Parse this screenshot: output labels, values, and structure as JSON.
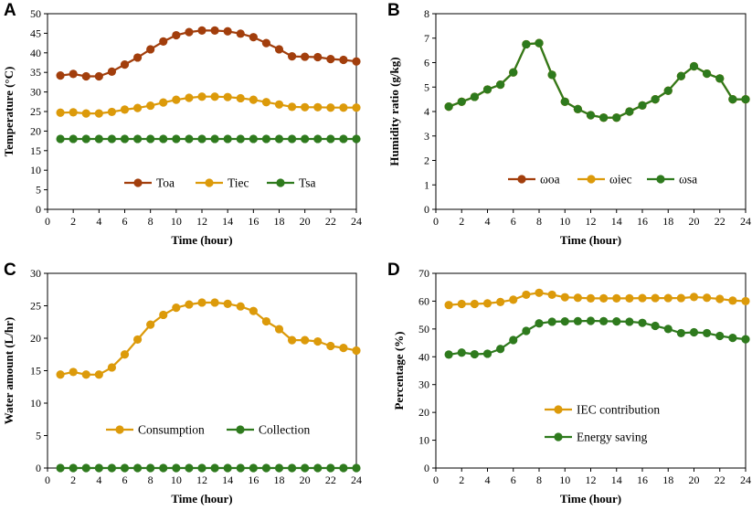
{
  "colors": {
    "red": "#a23e0c",
    "orange": "#dc9a0a",
    "green": "#2e7a1d"
  },
  "chart_data": [
    {
      "panel": "A",
      "type": "line",
      "xlabel": "Time (hour)",
      "ylabel": "Temperature (°C)",
      "xlim": [
        0,
        24
      ],
      "ylim": [
        0,
        50
      ],
      "xticks": [
        0,
        2,
        4,
        6,
        8,
        10,
        12,
        14,
        16,
        18,
        20,
        22,
        24
      ],
      "yticks": [
        0,
        5,
        10,
        15,
        20,
        25,
        30,
        35,
        40,
        45,
        50
      ],
      "x": [
        1,
        2,
        3,
        4,
        5,
        6,
        7,
        8,
        9,
        10,
        11,
        12,
        13,
        14,
        15,
        16,
        17,
        18,
        19,
        20,
        21,
        22,
        23,
        24
      ],
      "legend_position": "bottom-center",
      "legend_layout": "row",
      "series": [
        {
          "name": "Toa",
          "color": "#a23e0c",
          "values": [
            34.2,
            34.6,
            34.0,
            34.0,
            35.2,
            37.0,
            38.8,
            40.9,
            42.9,
            44.5,
            45.3,
            45.7,
            45.7,
            45.5,
            44.9,
            44.0,
            42.5,
            40.9,
            39.1,
            39.0,
            38.9,
            38.4,
            38.2,
            37.8
          ]
        },
        {
          "name": "Tiec",
          "color": "#dc9a0a",
          "values": [
            24.7,
            24.8,
            24.5,
            24.5,
            24.9,
            25.5,
            25.9,
            26.5,
            27.3,
            28.0,
            28.5,
            28.8,
            28.8,
            28.7,
            28.4,
            28.0,
            27.4,
            26.8,
            26.2,
            26.1,
            26.1,
            26.0,
            26.0,
            26.0
          ]
        },
        {
          "name": "Tsa",
          "color": "#2e7a1d",
          "values": [
            18,
            18,
            18,
            18,
            18,
            18,
            18,
            18,
            18,
            18,
            18,
            18,
            18,
            18,
            18,
            18,
            18,
            18,
            18,
            18,
            18,
            18,
            18,
            18
          ]
        }
      ]
    },
    {
      "panel": "B",
      "type": "line",
      "xlabel": "Time (hour)",
      "ylabel": "Humidity ratio (g/kg)",
      "xlim": [
        0,
        24
      ],
      "ylim": [
        0,
        8
      ],
      "xticks": [
        0,
        2,
        4,
        6,
        8,
        10,
        12,
        14,
        16,
        18,
        20,
        22,
        24
      ],
      "yticks": [
        0,
        1,
        2,
        3,
        4,
        5,
        6,
        7,
        8
      ],
      "x": [
        1,
        2,
        3,
        4,
        5,
        6,
        7,
        8,
        9,
        10,
        11,
        12,
        13,
        14,
        15,
        16,
        17,
        18,
        19,
        20,
        21,
        22,
        23,
        24
      ],
      "legend_position": "bottom-center",
      "legend_layout": "row",
      "series": [
        {
          "name": "ωoa",
          "color": "#a23e0c",
          "values": [
            4.2,
            4.4,
            4.6,
            4.9,
            5.1,
            5.6,
            6.75,
            6.8,
            5.5,
            4.4,
            4.1,
            3.85,
            3.75,
            3.75,
            4.0,
            4.25,
            4.5,
            4.85,
            5.45,
            5.85,
            5.55,
            5.35,
            4.5,
            4.5
          ]
        },
        {
          "name": "ωiec",
          "color": "#dc9a0a",
          "values": [
            4.2,
            4.4,
            4.6,
            4.9,
            5.1,
            5.6,
            6.75,
            6.8,
            5.5,
            4.4,
            4.1,
            3.85,
            3.75,
            3.75,
            4.0,
            4.25,
            4.5,
            4.85,
            5.45,
            5.85,
            5.55,
            5.35,
            4.5,
            4.5
          ]
        },
        {
          "name": "ωsa",
          "color": "#2e7a1d",
          "values": [
            4.2,
            4.4,
            4.6,
            4.9,
            5.1,
            5.6,
            6.75,
            6.8,
            5.5,
            4.4,
            4.1,
            3.85,
            3.75,
            3.75,
            4.0,
            4.25,
            4.5,
            4.85,
            5.45,
            5.85,
            5.55,
            5.35,
            4.5,
            4.5
          ]
        }
      ]
    },
    {
      "panel": "C",
      "type": "line",
      "xlabel": "Time (hour)",
      "ylabel": "Water amount (L/hr)",
      "xlim": [
        0,
        24
      ],
      "ylim": [
        0,
        30
      ],
      "xticks": [
        0,
        2,
        4,
        6,
        8,
        10,
        12,
        14,
        16,
        18,
        20,
        22,
        24
      ],
      "yticks": [
        0,
        5,
        10,
        15,
        20,
        25,
        30
      ],
      "x": [
        1,
        2,
        3,
        4,
        5,
        6,
        7,
        8,
        9,
        10,
        11,
        12,
        13,
        14,
        15,
        16,
        17,
        18,
        19,
        20,
        21,
        22,
        23,
        24
      ],
      "legend_position": "bottom-center",
      "legend_layout": "row",
      "series": [
        {
          "name": "Consumption",
          "color": "#dc9a0a",
          "values": [
            14.4,
            14.8,
            14.4,
            14.4,
            15.5,
            17.5,
            19.8,
            22.1,
            23.6,
            24.7,
            25.2,
            25.5,
            25.5,
            25.3,
            24.9,
            24.2,
            22.6,
            21.4,
            19.7,
            19.7,
            19.5,
            18.8,
            18.5,
            18.1
          ]
        },
        {
          "name": "Collection",
          "color": "#2e7a1d",
          "values": [
            0,
            0,
            0,
            0,
            0,
            0,
            0,
            0,
            0,
            0,
            0,
            0,
            0,
            0,
            0,
            0,
            0,
            0,
            0,
            0,
            0,
            0,
            0,
            0
          ]
        }
      ]
    },
    {
      "panel": "D",
      "type": "line",
      "xlabel": "Time (hour)",
      "ylabel": "Percentage (%)",
      "xlim": [
        0,
        24
      ],
      "ylim": [
        0,
        70
      ],
      "xticks": [
        0,
        2,
        4,
        6,
        8,
        10,
        12,
        14,
        16,
        18,
        20,
        22,
        24
      ],
      "yticks": [
        0,
        10,
        20,
        30,
        40,
        50,
        60,
        70
      ],
      "x": [
        1,
        2,
        3,
        4,
        5,
        6,
        7,
        8,
        9,
        10,
        11,
        12,
        13,
        14,
        15,
        16,
        17,
        18,
        19,
        20,
        21,
        22,
        23,
        24
      ],
      "legend_position": "lower-center",
      "legend_layout": "column",
      "series": [
        {
          "name": "IEC contribution",
          "color": "#dc9a0a",
          "values": [
            58.6,
            59.0,
            59.0,
            59.2,
            59.7,
            60.5,
            62.3,
            63.0,
            62.3,
            61.4,
            61.2,
            61.0,
            61.0,
            61.0,
            61.0,
            61.1,
            61.1,
            61.1,
            61.1,
            61.5,
            61.2,
            60.8,
            60.2,
            60.0
          ]
        },
        {
          "name": "Energy saving",
          "color": "#2e7a1d",
          "values": [
            40.8,
            41.5,
            40.9,
            41.1,
            42.8,
            46.0,
            49.3,
            52.0,
            52.6,
            52.7,
            52.8,
            52.9,
            52.8,
            52.7,
            52.6,
            52.2,
            51.1,
            50.0,
            48.5,
            48.8,
            48.5,
            47.5,
            46.8,
            46.3
          ]
        }
      ]
    }
  ]
}
